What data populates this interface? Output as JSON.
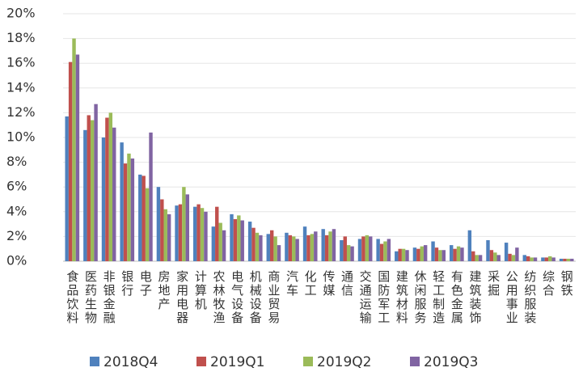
{
  "chart_data": {
    "type": "bar",
    "categories": [
      "食品饮料",
      "医药生物",
      "非银金融",
      "银行",
      "电子",
      "房地产",
      "家用电器",
      "计算机",
      "农林牧渔",
      "电气设备",
      "机械设备",
      "商业贸易",
      "汽车",
      "化工",
      "传媒",
      "通信",
      "交通运输",
      "国防军工",
      "建筑材料",
      "休闲服务",
      "轻工制造",
      "有色金属",
      "建筑装饰",
      "采掘",
      "公用事业",
      "纺织服装",
      "综合",
      "钢铁"
    ],
    "series": [
      {
        "name": "2018Q4",
        "color": "#4f81bd",
        "values": [
          11.7,
          10.6,
          10.0,
          9.6,
          7.0,
          6.0,
          4.5,
          4.4,
          2.8,
          3.8,
          3.2,
          2.2,
          2.3,
          2.8,
          2.6,
          1.7,
          1.8,
          1.8,
          0.8,
          1.1,
          1.6,
          1.3,
          2.5,
          1.7,
          1.5,
          0.5,
          0.3,
          0.2
        ]
      },
      {
        "name": "2019Q1",
        "color": "#c0504d",
        "values": [
          16.1,
          11.8,
          11.6,
          7.9,
          6.9,
          5.0,
          4.6,
          4.6,
          4.4,
          3.4,
          2.7,
          2.5,
          2.1,
          2.1,
          2.1,
          2.0,
          2.0,
          1.4,
          1.0,
          1.0,
          1.1,
          1.0,
          0.8,
          0.9,
          0.6,
          0.4,
          0.3,
          0.2
        ]
      },
      {
        "name": "2019Q2",
        "color": "#9bbb59",
        "values": [
          18.0,
          11.4,
          12.0,
          8.7,
          5.9,
          4.2,
          6.0,
          4.3,
          3.1,
          3.7,
          2.3,
          2.0,
          2.0,
          2.2,
          2.4,
          1.3,
          2.1,
          1.6,
          1.0,
          1.2,
          0.9,
          1.2,
          0.5,
          0.7,
          0.5,
          0.3,
          0.4,
          0.2
        ]
      },
      {
        "name": "2019Q3",
        "color": "#8064a2",
        "values": [
          16.7,
          12.7,
          10.8,
          8.3,
          10.4,
          3.8,
          5.4,
          4.0,
          2.5,
          3.3,
          2.1,
          1.3,
          1.8,
          2.4,
          2.6,
          1.2,
          2.0,
          1.8,
          0.9,
          1.3,
          0.9,
          1.1,
          0.5,
          0.5,
          1.1,
          0.3,
          0.3,
          0.2
        ]
      }
    ],
    "ylim": [
      0,
      20
    ],
    "yticks": [
      {
        "value": 0,
        "label": "0%"
      },
      {
        "value": 2,
        "label": "2%"
      },
      {
        "value": 4,
        "label": "4%"
      },
      {
        "value": 6,
        "label": "6%"
      },
      {
        "value": 8,
        "label": "8%"
      },
      {
        "value": 10,
        "label": "10%"
      },
      {
        "value": 12,
        "label": "12%"
      },
      {
        "value": 14,
        "label": "14%"
      },
      {
        "value": 16,
        "label": "16%"
      },
      {
        "value": 18,
        "label": "18%"
      },
      {
        "value": 20,
        "label": "20%"
      }
    ],
    "grid": true,
    "legend": "bottom"
  }
}
